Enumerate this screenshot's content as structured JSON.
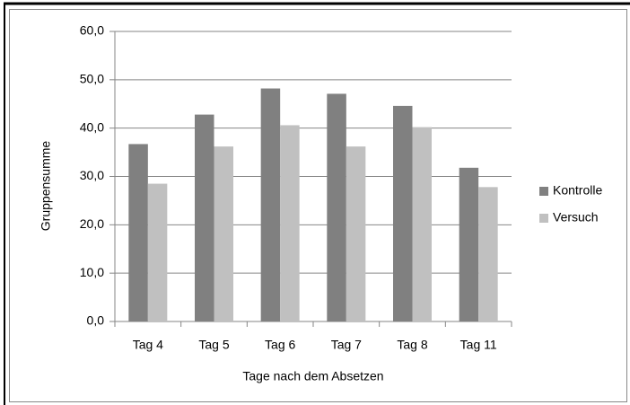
{
  "chart_data": {
    "type": "bar",
    "categories": [
      "Tag 4",
      "Tag 5",
      "Tag 6",
      "Tag 7",
      "Tag 8",
      "Tag 11"
    ],
    "series": [
      {
        "name": "Kontrolle",
        "color": "#808080",
        "values": [
          36.7,
          42.8,
          48.2,
          47.1,
          44.6,
          31.8
        ]
      },
      {
        "name": "Versuch",
        "color": "#c0c0c0",
        "values": [
          28.5,
          36.2,
          40.6,
          36.2,
          40.2,
          27.8
        ]
      }
    ],
    "ylim": [
      0,
      60
    ],
    "yticks": [
      {
        "value": 0,
        "label": "0,0"
      },
      {
        "value": 10,
        "label": "10,0"
      },
      {
        "value": 20,
        "label": "20,0"
      },
      {
        "value": 30,
        "label": "30,0"
      },
      {
        "value": 40,
        "label": "40,0"
      },
      {
        "value": 50,
        "label": "50,0"
      },
      {
        "value": 60,
        "label": "60,0"
      }
    ],
    "ylabel": "Gruppensumme",
    "xlabel": "Tage nach dem Absetzen",
    "grid": true,
    "legend": "right"
  }
}
